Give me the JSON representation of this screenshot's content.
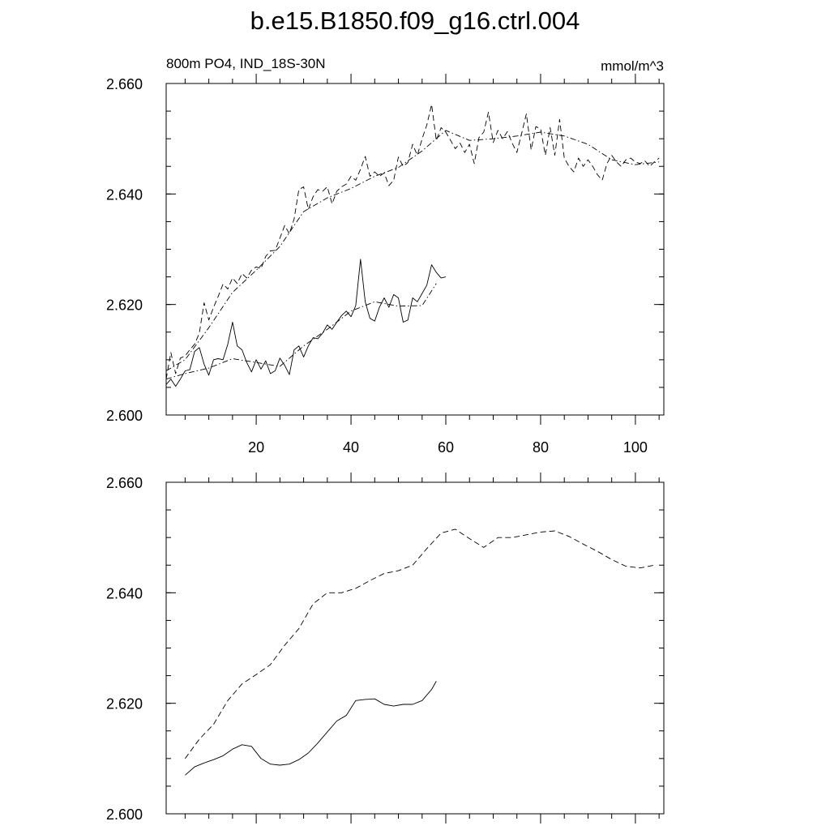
{
  "title": "b.e15.B1850.f09_g16.ctrl.004",
  "chart_data": [
    {
      "type": "line",
      "subtitle_left": "800m PO4, IND_18S-30N",
      "subtitle_right": "mmol/m^3",
      "xlim": [
        1,
        106
      ],
      "ylim": [
        2.6,
        2.66
      ],
      "xticks": [
        20,
        40,
        60,
        80,
        100
      ],
      "xtick_labels": [
        "20",
        "40",
        "60",
        "80",
        "100"
      ],
      "yticks": [
        2.6,
        2.62,
        2.64,
        2.66
      ],
      "ytick_labels": [
        "2.600",
        "2.620",
        "2.640",
        "2.660"
      ],
      "grid": false,
      "series": [
        {
          "style": "dashed",
          "x": [
            1,
            2,
            3,
            4,
            5,
            6,
            7,
            8,
            9,
            10,
            11,
            12,
            13,
            14,
            15,
            16,
            17,
            18,
            19,
            20,
            21,
            22,
            23,
            24,
            25,
            26,
            27,
            28,
            29,
            30,
            31,
            32,
            33,
            34,
            35,
            36,
            37,
            38,
            39,
            40,
            41,
            42,
            43,
            44,
            45,
            46,
            47,
            48,
            49,
            50,
            51,
            52,
            53,
            54,
            55,
            56,
            57,
            58,
            59,
            60,
            61,
            62,
            63,
            64,
            65,
            66,
            67,
            68,
            69,
            70,
            71,
            72,
            73,
            74,
            75,
            76,
            77,
            78,
            79,
            80,
            81,
            82,
            83,
            84,
            85,
            86,
            87,
            88,
            89,
            90,
            91,
            92,
            93,
            94,
            95,
            96,
            97,
            98,
            99,
            100,
            101,
            102,
            103,
            104,
            105
          ],
          "y": [
            2.6065,
            2.6113,
            2.6075,
            2.6103,
            2.6107,
            2.6118,
            2.6128,
            2.6148,
            2.6203,
            2.6172,
            2.6195,
            2.6215,
            2.6237,
            2.6228,
            2.6248,
            2.6238,
            2.6256,
            2.6248,
            2.6262,
            2.6268,
            2.6265,
            2.6287,
            2.6297,
            2.6298,
            2.632,
            2.6343,
            2.6328,
            2.6355,
            2.6408,
            2.6413,
            2.6372,
            2.6395,
            2.6408,
            2.6405,
            2.6413,
            2.6382,
            2.6405,
            2.6413,
            2.6418,
            2.6432,
            2.6425,
            2.6445,
            2.6468,
            2.6432,
            2.644,
            2.6432,
            2.6438,
            2.6415,
            2.6425,
            2.6467,
            2.645,
            2.6457,
            2.649,
            2.647,
            2.65,
            2.6525,
            2.6562,
            2.6497,
            2.652,
            2.6512,
            2.6497,
            2.6482,
            2.6492,
            2.6475,
            2.649,
            2.6455,
            2.6502,
            2.6512,
            2.6548,
            2.6493,
            2.6515,
            2.65,
            2.6513,
            2.6492,
            2.6475,
            2.651,
            2.6545,
            2.648,
            2.6522,
            2.6518,
            2.647,
            2.652,
            2.647,
            2.6535,
            2.6465,
            2.645,
            2.644,
            2.6465,
            2.645,
            2.6462,
            2.645,
            2.6435,
            2.6425,
            2.6455,
            2.647,
            2.6458,
            2.645,
            2.6462,
            2.6465,
            2.6458,
            2.6455,
            2.646,
            2.645,
            2.6458,
            2.6465
          ]
        },
        {
          "style": "dash-dot",
          "x": [
            1,
            5,
            10,
            15,
            20,
            25,
            30,
            35,
            40,
            45,
            50,
            55,
            60,
            65,
            70,
            75,
            80,
            85,
            90,
            95,
            100,
            105
          ],
          "y": [
            2.608,
            2.61,
            2.6158,
            2.6222,
            2.6262,
            2.6305,
            2.6368,
            2.6393,
            2.641,
            2.6432,
            2.6448,
            2.6478,
            2.6515,
            2.6497,
            2.65,
            2.6505,
            2.6512,
            2.6505,
            2.649,
            2.6462,
            2.6453,
            2.6458
          ]
        },
        {
          "style": "solid",
          "x": [
            1,
            2,
            3,
            4,
            5,
            6,
            7,
            8,
            9,
            10,
            11,
            12,
            13,
            14,
            15,
            16,
            17,
            18,
            19,
            20,
            21,
            22,
            23,
            24,
            25,
            26,
            27,
            28,
            29,
            30,
            31,
            32,
            33,
            34,
            35,
            36,
            37,
            38,
            39,
            40,
            41,
            42,
            43,
            44,
            45,
            46,
            47,
            48,
            49,
            50,
            51,
            52,
            53,
            54,
            55,
            56,
            57,
            58,
            59,
            60
          ],
          "y": [
            2.6055,
            2.6065,
            2.6052,
            2.6065,
            2.608,
            2.6082,
            2.6115,
            2.6122,
            2.6092,
            2.6072,
            2.61,
            2.6102,
            2.61,
            2.6128,
            2.6168,
            2.6125,
            2.6118,
            2.6095,
            2.6078,
            2.61,
            2.6083,
            2.6098,
            2.6075,
            2.608,
            2.6103,
            2.609,
            2.6073,
            2.6118,
            2.6125,
            2.6105,
            2.6125,
            2.614,
            2.6138,
            2.6148,
            2.6163,
            2.6155,
            2.6168,
            2.618,
            2.6188,
            2.6178,
            2.6198,
            2.6282,
            2.6205,
            2.6175,
            2.617,
            2.6195,
            2.6212,
            2.6195,
            2.6218,
            2.6212,
            2.6168,
            2.6172,
            2.6212,
            2.6205,
            2.622,
            2.6235,
            2.6272,
            2.6258,
            2.6248,
            2.625
          ]
        },
        {
          "style": "dash-dot",
          "x": [
            1,
            5,
            10,
            15,
            20,
            25,
            30,
            35,
            40,
            45,
            50,
            55,
            58
          ],
          "y": [
            2.6065,
            2.6075,
            2.6085,
            2.6102,
            2.6095,
            2.6088,
            2.6125,
            2.6155,
            2.6188,
            2.6205,
            2.6197,
            2.6198,
            2.6238
          ]
        }
      ]
    },
    {
      "type": "line",
      "xlim": [
        1,
        106
      ],
      "ylim": [
        2.6,
        2.66
      ],
      "xticks": [
        20,
        40,
        60,
        80,
        100
      ],
      "yticks": [
        2.6,
        2.62,
        2.64,
        2.66
      ],
      "ytick_labels": [
        "2.600",
        "2.620",
        "2.640",
        "2.660"
      ],
      "grid": false,
      "series": [
        {
          "style": "dashed",
          "x": [
            5,
            8,
            11,
            14,
            17,
            20,
            23,
            26,
            29,
            32,
            35,
            38,
            41,
            44,
            47,
            50,
            53,
            56,
            59,
            62,
            65,
            68,
            71,
            74,
            77,
            80,
            83,
            86,
            89,
            92,
            95,
            98,
            101,
            104
          ],
          "y": [
            2.61,
            2.6135,
            2.6162,
            2.6205,
            2.6235,
            2.6252,
            2.627,
            2.6305,
            2.6335,
            2.638,
            2.64,
            2.64,
            2.6408,
            2.6422,
            2.6435,
            2.644,
            2.645,
            2.648,
            2.6508,
            2.6515,
            2.6498,
            2.6482,
            2.65,
            2.65,
            2.6505,
            2.651,
            2.6512,
            2.6502,
            2.6488,
            2.6475,
            2.646,
            2.6448,
            2.6445,
            2.645
          ]
        },
        {
          "style": "solid",
          "x": [
            5,
            7,
            9,
            11,
            13,
            15,
            17,
            19,
            21,
            23,
            25,
            27,
            29,
            31,
            33,
            35,
            37,
            39,
            41,
            43,
            45,
            47,
            49,
            51,
            53,
            55,
            57,
            58
          ],
          "y": [
            2.607,
            2.6085,
            2.6092,
            2.6098,
            2.6105,
            2.6117,
            2.6125,
            2.6122,
            2.61,
            2.609,
            2.6088,
            2.609,
            2.6098,
            2.611,
            2.6128,
            2.6148,
            2.6168,
            2.6178,
            2.6205,
            2.6207,
            2.6208,
            2.6198,
            2.6195,
            2.6198,
            2.6198,
            2.6205,
            2.6225,
            2.624
          ]
        }
      ]
    }
  ]
}
